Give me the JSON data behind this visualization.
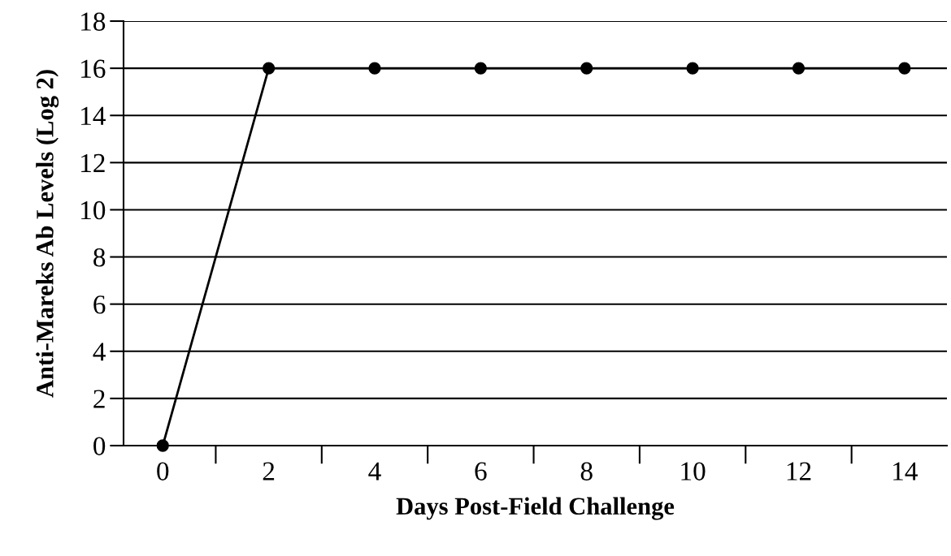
{
  "chart_data": {
    "type": "line",
    "xlabel": "Days Post-Field Challenge",
    "ylabel": "Anti-Mareks Ab Levels (Log 2)",
    "categories": [
      "0",
      "2",
      "4",
      "6",
      "8",
      "10",
      "12",
      "14"
    ],
    "series": [
      {
        "color": "#000000",
        "values": [
          0,
          16,
          16,
          16,
          16,
          16,
          16,
          16
        ]
      }
    ],
    "ylim": [
      0,
      18
    ],
    "yticks": [
      0,
      2,
      4,
      6,
      8,
      10,
      12,
      14,
      16,
      18
    ],
    "grid": "y",
    "marker": "circle",
    "line_style": "solid"
  }
}
